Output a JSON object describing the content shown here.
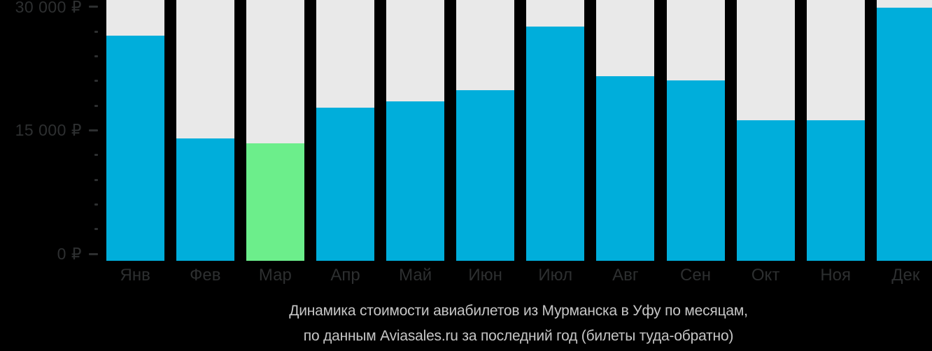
{
  "chart_data": {
    "type": "bar",
    "title": "Динамика стоимости авиабилетов из Мурманска в Уфу по месяцам, по данным Aviasales.ru за последний год (билеты туда-обратно)",
    "title_lines": [
      "Динамика стоимости авиабилетов из Мурманска в Уфу по месяцам,",
      "по данным Aviasales.ru за последний год (билеты туда-обратно)"
    ],
    "categories": [
      "Янв",
      "Фев",
      "Мар",
      "Апр",
      "Май",
      "Июн",
      "Июл",
      "Авг",
      "Сен",
      "Окт",
      "Ноя",
      "Дек"
    ],
    "values": [
      26500,
      14000,
      13400,
      17800,
      18500,
      19900,
      27600,
      21600,
      21100,
      16200,
      16200,
      29900
    ],
    "highlight_index": 2,
    "currency": "₽",
    "ylim": [
      0,
      30000
    ],
    "y_axis": {
      "major_ticks": [
        {
          "value": 0,
          "label": "0 ₽"
        },
        {
          "value": 15000,
          "label": "15 000 ₽"
        },
        {
          "value": 30000,
          "label": "30 000 ₽"
        }
      ],
      "minor_tick_step": 3000
    },
    "legend": null,
    "grid": false,
    "colors": {
      "bar": "#00AEDB",
      "highlight": "#6CEE8B",
      "backdrop": "#E9E9E9",
      "axis_text": "#2D2F30",
      "tick_dash": "#2D2F30",
      "caption_text": "#C6C6C6",
      "background": "#000000"
    }
  }
}
